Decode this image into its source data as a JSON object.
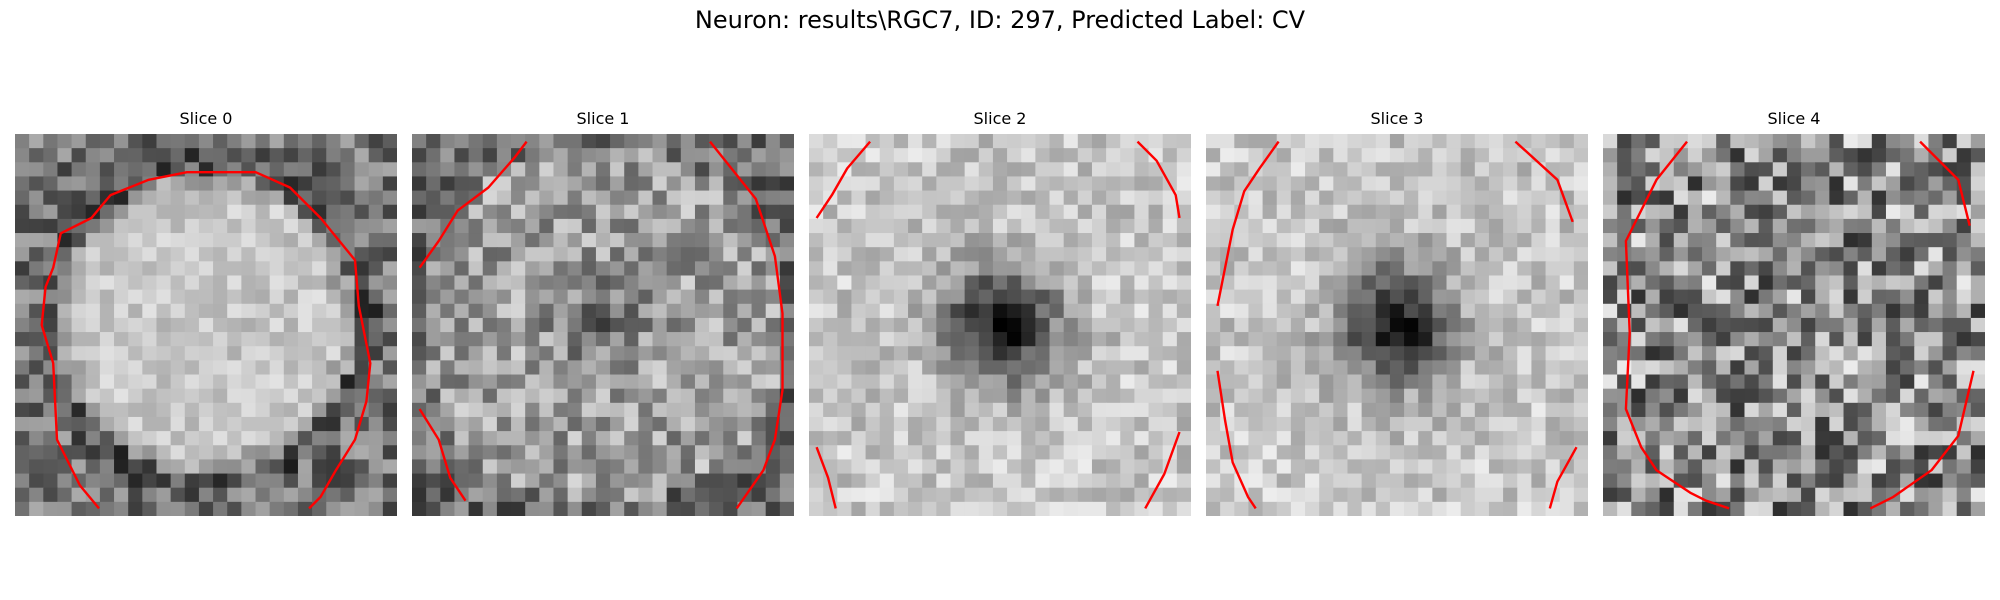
{
  "title": "Neuron: results\\RGC7, ID: 297, Predicted Label: CV",
  "contour_color": "#ff0000",
  "slices": [
    {
      "label": "Slice 0",
      "pattern": "bright-center"
    },
    {
      "label": "Slice 1",
      "pattern": "mixed"
    },
    {
      "label": "Slice 2",
      "pattern": "dark-center"
    },
    {
      "label": "Slice 3",
      "pattern": "dark-center"
    },
    {
      "label": "Slice 4",
      "pattern": "noisy"
    }
  ]
}
